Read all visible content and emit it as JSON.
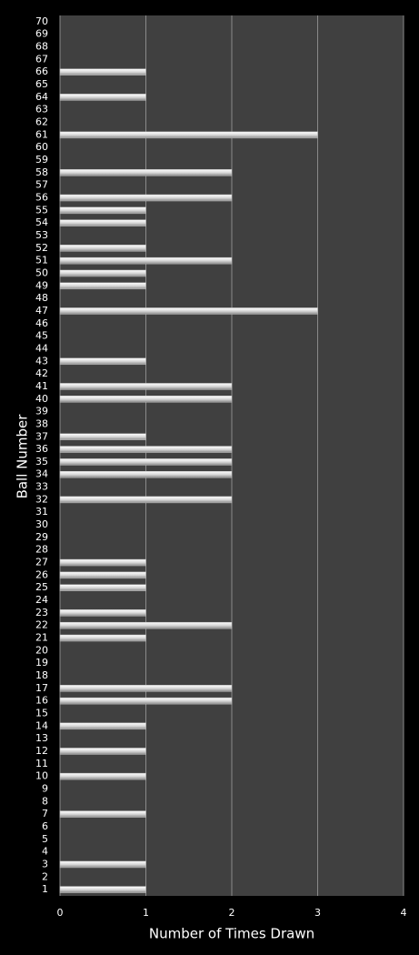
{
  "chart_data": {
    "type": "bar",
    "orientation": "horizontal",
    "xlabel": "Number of Times Drawn",
    "ylabel": "Ball Number",
    "categories": [
      "1",
      "2",
      "3",
      "4",
      "5",
      "6",
      "7",
      "8",
      "9",
      "10",
      "11",
      "12",
      "13",
      "14",
      "15",
      "16",
      "17",
      "18",
      "19",
      "20",
      "21",
      "22",
      "23",
      "24",
      "25",
      "26",
      "27",
      "28",
      "29",
      "30",
      "31",
      "32",
      "33",
      "34",
      "35",
      "36",
      "37",
      "38",
      "39",
      "40",
      "41",
      "42",
      "43",
      "44",
      "45",
      "46",
      "47",
      "48",
      "49",
      "50",
      "51",
      "52",
      "53",
      "54",
      "55",
      "56",
      "57",
      "58",
      "59",
      "60",
      "61",
      "62",
      "63",
      "64",
      "65",
      "66",
      "67",
      "68",
      "69",
      "70"
    ],
    "values": [
      1,
      0,
      1,
      0,
      0,
      0,
      1,
      0,
      0,
      1,
      0,
      1,
      0,
      1,
      0,
      2,
      2,
      0,
      0,
      0,
      1,
      2,
      1,
      0,
      1,
      1,
      1,
      0,
      0,
      0,
      0,
      2,
      0,
      2,
      2,
      2,
      1,
      0,
      0,
      2,
      2,
      0,
      1,
      0,
      0,
      0,
      3,
      0,
      1,
      1,
      2,
      1,
      0,
      1,
      1,
      2,
      0,
      2,
      0,
      0,
      3,
      0,
      0,
      1,
      0,
      1,
      0,
      0,
      0,
      0
    ],
    "color": "#e8e8e8",
    "xlim": [
      0,
      4
    ],
    "xticks": [
      0,
      1,
      2,
      3,
      4
    ],
    "grid": true
  }
}
